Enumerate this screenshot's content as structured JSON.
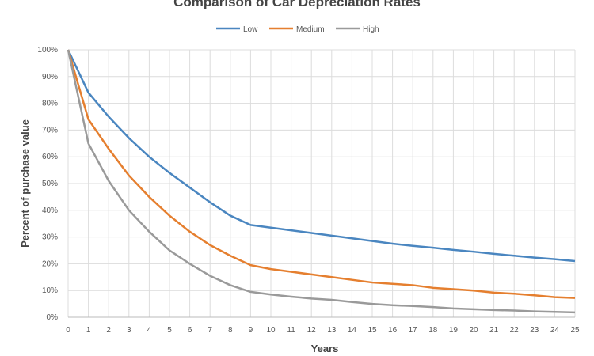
{
  "chart_data": {
    "type": "line",
    "title": "Comparison of Car Depreciation Rates",
    "xlabel": "Years",
    "ylabel": "Percent of purchase value",
    "x": [
      0,
      1,
      2,
      3,
      4,
      5,
      6,
      7,
      8,
      9,
      10,
      11,
      12,
      13,
      14,
      15,
      16,
      17,
      18,
      19,
      20,
      21,
      22,
      23,
      24,
      25
    ],
    "xlim": [
      0,
      25
    ],
    "ylim": [
      0,
      100
    ],
    "yticks": [
      "0%",
      "10%",
      "20%",
      "30%",
      "40%",
      "50%",
      "60%",
      "70%",
      "80%",
      "90%",
      "100%"
    ],
    "grid": true,
    "legend": "top",
    "series": [
      {
        "name": "Low",
        "color": "#4a86c0",
        "values": [
          100,
          84,
          75,
          67,
          60,
          54,
          48.5,
          43,
          38,
          34.5,
          33.5,
          32.5,
          31.5,
          30.5,
          29.5,
          28.5,
          27.5,
          26.7,
          26,
          25.2,
          24.5,
          23.7,
          23,
          22.3,
          21.7,
          21
        ]
      },
      {
        "name": "Medium",
        "color": "#e57f2f",
        "values": [
          100,
          74,
          63,
          53,
          45,
          38,
          32,
          27,
          23,
          19.5,
          18,
          17,
          16,
          15,
          14,
          13,
          12.5,
          12,
          11,
          10.5,
          10,
          9.2,
          8.8,
          8.2,
          7.5,
          7.2
        ]
      },
      {
        "name": "High",
        "color": "#9a9a9a",
        "values": [
          100,
          65,
          51,
          40,
          32,
          25,
          20,
          15.5,
          12,
          9.5,
          8.5,
          7.7,
          7,
          6.5,
          5.7,
          5,
          4.5,
          4.2,
          3.8,
          3.3,
          3,
          2.7,
          2.5,
          2.2,
          2,
          1.8
        ]
      }
    ]
  }
}
